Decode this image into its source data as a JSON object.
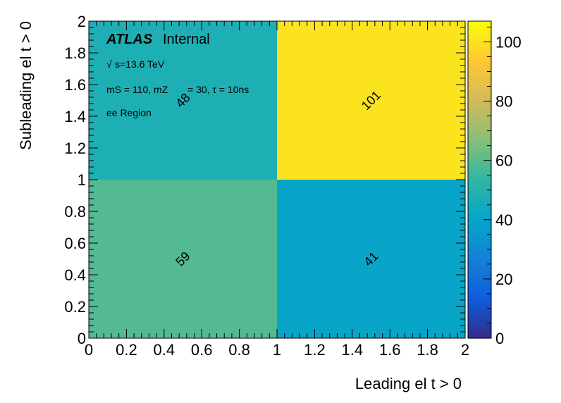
{
  "chart_data": {
    "type": "heatmap",
    "xlabel": "Leading el t > 0",
    "ylabel": "Subleading el t > 0",
    "xlim": [
      0,
      2
    ],
    "ylim": [
      0,
      2
    ],
    "x_edges": [
      0,
      1,
      2
    ],
    "y_edges": [
      0,
      1,
      2
    ],
    "x_ticks": [
      "0",
      "0.2",
      "0.4",
      "0.6",
      "0.8",
      "1",
      "1.2",
      "1.4",
      "1.6",
      "1.8",
      "2"
    ],
    "y_ticks": [
      "0",
      "0.2",
      "0.4",
      "0.6",
      "0.8",
      "1",
      "1.2",
      "1.4",
      "1.6",
      "1.8",
      "2"
    ],
    "cells": [
      {
        "x": 0.5,
        "y": 0.5,
        "value": 59,
        "label": "59"
      },
      {
        "x": 1.5,
        "y": 0.5,
        "value": 41,
        "label": "41"
      },
      {
        "x": 0.5,
        "y": 1.5,
        "value": 48,
        "label": "48"
      },
      {
        "x": 1.5,
        "y": 1.5,
        "value": 101,
        "label": "101"
      }
    ],
    "colorbar": {
      "range": [
        0,
        107
      ],
      "ticks": [
        "0",
        "20",
        "40",
        "60",
        "80",
        "100"
      ],
      "palette": "viridis-like",
      "colors": [
        "#352a87",
        "#0f5cdd",
        "#1481d6",
        "#06a4ca",
        "#2eb7a4",
        "#87bf77",
        "#d1bb59",
        "#fec832",
        "#f9fb0e"
      ]
    },
    "annotations": {
      "experiment": "ATLAS",
      "status": "Internal",
      "energy_sqrt": "√",
      "energy_text": "s=13.6 TeV",
      "params": "mS = 110, mZ",
      "params_rest": "= 30, τ = 10ns",
      "region": "ee Region"
    }
  }
}
